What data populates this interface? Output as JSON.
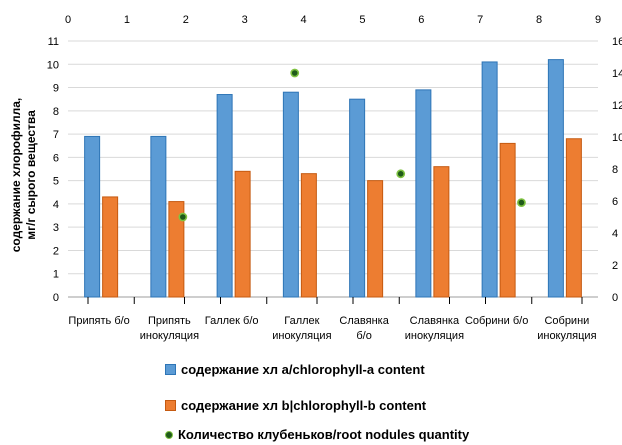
{
  "chart_data": {
    "type": "bar",
    "categories": [
      [
        "Припять б/о"
      ],
      [
        "Припять",
        "инокуляция"
      ],
      [
        "Галлек б/о"
      ],
      [
        "Галлек",
        "инокуляция"
      ],
      [
        "Славянка",
        "б/о"
      ],
      [
        "Славянка",
        "инокуляция"
      ],
      [
        "Собрини б/о"
      ],
      [
        "Собрини",
        "инокуляция"
      ]
    ],
    "series": [
      {
        "name": "содержание хл a/chlorophyll-a content",
        "type": "bar",
        "color": "#5b9bd5",
        "values": [
          6.9,
          6.9,
          8.7,
          8.8,
          8.5,
          8.9,
          10.1,
          10.2
        ]
      },
      {
        "name": "содержание хл b|chlorophyll-b content",
        "type": "bar",
        "color": "#ed7d31",
        "values": [
          4.3,
          4.1,
          5.4,
          5.3,
          5.0,
          5.6,
          6.6,
          6.8
        ]
      },
      {
        "name": "Количество клубеньков/root nodules quantity",
        "type": "scatter",
        "axis": "secondary",
        "color": "#1f5a1a",
        "x": [
          1.95,
          3.85,
          5.65,
          7.7
        ],
        "values": [
          5.0,
          14.0,
          7.7,
          5.9
        ]
      }
    ],
    "ylabel": [
      "содержание хлорофилла,",
      "мг/г сырого вещества"
    ],
    "ylim": [
      0,
      11
    ],
    "yticks": [
      0,
      1,
      2,
      3,
      4,
      5,
      6,
      7,
      8,
      9,
      10,
      11
    ],
    "secondary_ylim": [
      0,
      16
    ],
    "secondary_yticks": [
      0,
      2,
      4,
      6,
      8,
      10,
      12,
      14,
      16
    ],
    "secondary_x_ticks": [
      0,
      1,
      2,
      3,
      4,
      5,
      6,
      7,
      8,
      9
    ],
    "grid": true,
    "legend_position": "bottom"
  }
}
